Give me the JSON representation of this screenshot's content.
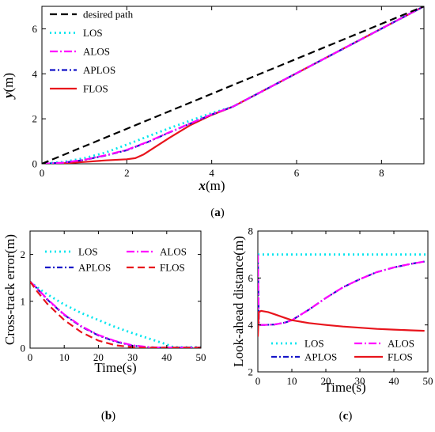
{
  "colors": {
    "desired": "#000000",
    "los": "#00e5ee",
    "alos": "#ff00ff",
    "aplos": "#1515c8",
    "flos": "#e8141c"
  },
  "chart_data": [
    {
      "id": "a",
      "type": "line",
      "panel_label": "a",
      "xlabel_var": "x",
      "xlabel_unit": "(m)",
      "ylabel_var": "y",
      "ylabel_unit": "(m)",
      "xlim": [
        0,
        9
      ],
      "ylim": [
        0,
        7
      ],
      "xticks": [
        0,
        2,
        4,
        6,
        8
      ],
      "yticks": [
        0,
        2,
        4,
        6
      ],
      "grid": false,
      "legend_position": "top-left",
      "series": [
        {
          "name": "desired path",
          "x": [
            0,
            9
          ],
          "y": [
            0,
            7
          ]
        },
        {
          "name": "LOS",
          "x": [
            0,
            0.5,
            1.0,
            1.5,
            2.0,
            2.5,
            3.0,
            3.5,
            4.0,
            4.5,
            9
          ],
          "y": [
            0,
            0.08,
            0.25,
            0.5,
            0.85,
            1.22,
            1.58,
            1.92,
            2.25,
            2.54,
            7
          ]
        },
        {
          "name": "ALOS",
          "x": [
            0,
            0.5,
            1.0,
            1.5,
            2.0,
            2.5,
            3.0,
            3.5,
            4.0,
            4.5,
            9
          ],
          "y": [
            0,
            0.05,
            0.18,
            0.38,
            0.62,
            0.98,
            1.4,
            1.8,
            2.2,
            2.54,
            7
          ]
        },
        {
          "name": "APLOS",
          "x": [
            0,
            0.5,
            1.0,
            1.5,
            2.0,
            2.5,
            3.0,
            3.5,
            4.0,
            4.5,
            9
          ],
          "y": [
            0,
            0.05,
            0.17,
            0.37,
            0.6,
            0.97,
            1.39,
            1.79,
            2.19,
            2.54,
            7
          ]
        },
        {
          "name": "FLOS",
          "x": [
            0,
            0.5,
            1.0,
            1.5,
            2.0,
            2.2,
            2.4,
            3.0,
            3.5,
            4.0,
            4.5,
            9
          ],
          "y": [
            0,
            0.02,
            0.08,
            0.15,
            0.2,
            0.25,
            0.42,
            1.15,
            1.72,
            2.17,
            2.54,
            7
          ]
        }
      ]
    },
    {
      "id": "b",
      "type": "line",
      "panel_label": "b",
      "xlabel": "Time(s)",
      "ylabel": "Cross-track error(m)",
      "xlim": [
        0,
        50
      ],
      "ylim": [
        0,
        2.5
      ],
      "xticks": [
        0,
        10,
        20,
        30,
        40,
        50
      ],
      "yticks": [
        0,
        1,
        2
      ],
      "grid": false,
      "legend_position": "top",
      "series": [
        {
          "name": "LOS",
          "x": [
            0,
            2,
            5,
            10,
            15,
            20,
            25,
            30,
            35,
            40,
            42,
            50
          ],
          "y": [
            1.42,
            1.3,
            1.15,
            0.93,
            0.75,
            0.6,
            0.45,
            0.32,
            0.2,
            0.08,
            0.02,
            0.02
          ]
        },
        {
          "name": "ALOS",
          "x": [
            0,
            2,
            5,
            10,
            15,
            20,
            25,
            30,
            35,
            38,
            50
          ],
          "y": [
            1.42,
            1.28,
            1.05,
            0.72,
            0.47,
            0.28,
            0.15,
            0.06,
            0.02,
            0.01,
            0.01
          ]
        },
        {
          "name": "APLOS",
          "x": [
            0,
            2,
            5,
            10,
            15,
            20,
            25,
            30,
            35,
            38,
            50
          ],
          "y": [
            1.42,
            1.28,
            1.04,
            0.71,
            0.46,
            0.27,
            0.14,
            0.05,
            0.02,
            0.01,
            0.01
          ]
        },
        {
          "name": "FLOS",
          "x": [
            0,
            2,
            5,
            10,
            15,
            20,
            25,
            30,
            33,
            50
          ],
          "y": [
            1.42,
            1.22,
            0.95,
            0.6,
            0.34,
            0.16,
            0.06,
            0.02,
            0.01,
            0.01
          ]
        }
      ]
    },
    {
      "id": "c",
      "type": "line",
      "panel_label": "c",
      "xlabel": "Time(s)",
      "ylabel": "Look-ahead distance(m)",
      "xlim": [
        0,
        50
      ],
      "ylim": [
        2,
        8
      ],
      "xticks": [
        0,
        10,
        20,
        30,
        40,
        50
      ],
      "yticks": [
        2,
        4,
        6,
        8
      ],
      "grid": false,
      "legend_position": "bottom",
      "series": [
        {
          "name": "LOS",
          "x": [
            0,
            50
          ],
          "y": [
            7.0,
            7.0
          ]
        },
        {
          "name": "ALOS",
          "x": [
            0,
            0.3,
            2,
            5,
            8,
            10,
            15,
            20,
            25,
            30,
            35,
            40,
            45,
            49
          ],
          "y": [
            7.0,
            4.0,
            4.0,
            4.02,
            4.1,
            4.2,
            4.65,
            5.15,
            5.6,
            5.95,
            6.25,
            6.45,
            6.6,
            6.7
          ]
        },
        {
          "name": "APLOS",
          "x": [
            0,
            0.3,
            2,
            5,
            8,
            10,
            15,
            20,
            25,
            30,
            35,
            40,
            45,
            49
          ],
          "y": [
            7.0,
            4.0,
            4.0,
            4.02,
            4.1,
            4.2,
            4.65,
            5.15,
            5.6,
            5.95,
            6.25,
            6.45,
            6.6,
            6.7
          ]
        },
        {
          "name": "FLOS",
          "x": [
            0,
            0.3,
            1,
            3,
            5,
            8,
            10,
            15,
            20,
            25,
            30,
            35,
            40,
            45,
            49
          ],
          "y": [
            3.5,
            4.55,
            4.6,
            4.55,
            4.45,
            4.3,
            4.2,
            4.08,
            4.0,
            3.93,
            3.88,
            3.83,
            3.8,
            3.77,
            3.75
          ]
        }
      ]
    }
  ]
}
